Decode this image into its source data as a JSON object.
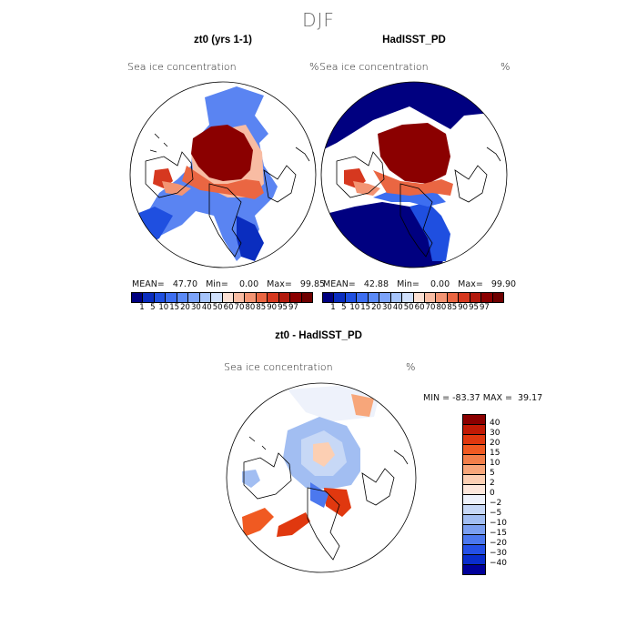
{
  "figure": {
    "title": "DJF"
  },
  "panels": {
    "left": {
      "title": "zt0 (yrs 1-1)",
      "variable": "Sea ice concentration",
      "unit": "%",
      "stats": "MEAN=   47.70   Min=    0.00   Max=   99.85"
    },
    "right": {
      "title": "HadISST_PD",
      "variable": "Sea ice concentration",
      "unit": "%",
      "stats": "MEAN=   42.88   Min=    0.00   Max=   99.90"
    },
    "diff": {
      "title": "zt0 - HadISST_PD",
      "variable": "Sea ice concentration",
      "unit": "%",
      "stats": "MIN = -83.37 MAX =  39.17"
    }
  },
  "colorbar_top": {
    "tick_labels": [
      "1",
      "5",
      "10",
      "15",
      "20",
      "30",
      "40",
      "50",
      "60",
      "70",
      "80",
      "85",
      "90",
      "95",
      "97"
    ],
    "colors": [
      "#000080",
      "#0a2dbf",
      "#1f4fe0",
      "#3d6ef0",
      "#5b8af7",
      "#7ca3fa",
      "#a6c4fb",
      "#d0e0fc",
      "#fbe0d3",
      "#f8bca3",
      "#f39473",
      "#ea6642",
      "#d6381f",
      "#b31a0d",
      "#8b0000",
      "#6e0000"
    ]
  },
  "colorbar_diff": {
    "tick_labels": [
      "40",
      "30",
      "20",
      "15",
      "10",
      "5",
      "2",
      "0",
      "−2",
      "−5",
      "−10",
      "−15",
      "−20",
      "−30",
      "−40"
    ],
    "colors": [
      "#8b0000",
      "#c11a05",
      "#e0380f",
      "#f05a22",
      "#f27f4a",
      "#f7a67a",
      "#fccfb3",
      "#fde7db",
      "#eef2fb",
      "#c7d8f6",
      "#a2bef2",
      "#7b9ff0",
      "#4c78ee",
      "#2550e6",
      "#0a2dcc",
      "#00009a"
    ]
  }
}
